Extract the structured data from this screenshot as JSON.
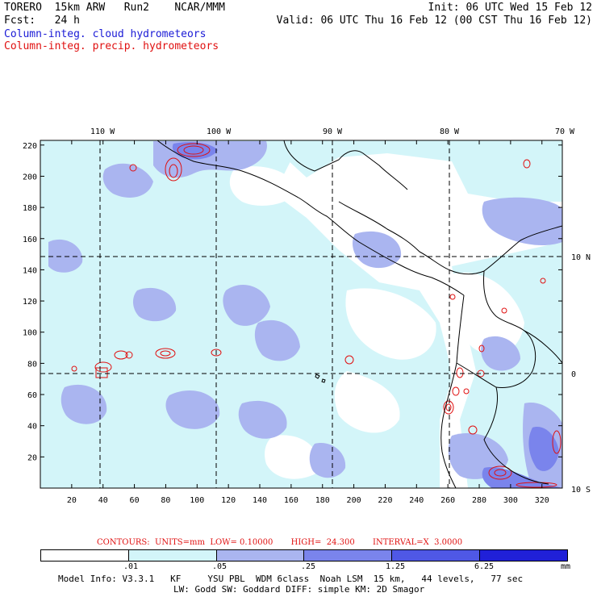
{
  "header": {
    "line1_left": "TORERO  15km ARW   Run2    NCAR/MMM",
    "line1_right": "Init: 06 UTC Wed 15 Feb 12",
    "line2_left": "Fcst:   24 h",
    "line2_right": "Valid: 06 UTC Thu 16 Feb 12 (00 CST Thu 16 Feb 12)",
    "field1": "Column-integ. cloud hydrometeors",
    "field2": "Column-integ. precip. hydrometeors"
  },
  "map": {
    "lon_labels": [
      "110 W",
      "100 W",
      "90 W",
      "80 W",
      "70 W"
    ],
    "lat_labels": [
      "10 N",
      "0",
      "10 S"
    ],
    "x_ticks": [
      "20",
      "40",
      "60",
      "80",
      "100",
      "120",
      "140",
      "160",
      "180",
      "200",
      "220",
      "240",
      "260",
      "280",
      "300",
      "320"
    ],
    "y_ticks": [
      "220",
      "200",
      "180",
      "160",
      "140",
      "120",
      "100",
      "80",
      "60",
      "40",
      "20"
    ],
    "colors": {
      "ocean": "#ffffff",
      "light_cyan": "#d3f5f9",
      "light_blue": "#aab5f0",
      "medium_blue": "#7a84ec",
      "precip_contour": "#e01010",
      "coast": "#000000"
    }
  },
  "contours_info": {
    "text": "CONTOURS:  UNITS=mm  LOW= 0.10000       HIGH=  24.300       INTERVAL=X  3.0000"
  },
  "legend": {
    "labels": [
      ".01",
      ".05",
      ".25",
      "1.25",
      "6.25"
    ],
    "unit": "mm",
    "colors": [
      "#ffffff",
      "#d3f5f9",
      "#aab5f0",
      "#7a84ec",
      "#4f58e6",
      "#2020d8"
    ]
  },
  "footer": {
    "line1": "Model Info: V3.3.1   KF     YSU PBL  WDM 6class  Noah LSM  15 km,   44 levels,   77 sec",
    "line2": "LW: Godd SW: Goddard DIFF: simple KM: 2D Smagor"
  }
}
